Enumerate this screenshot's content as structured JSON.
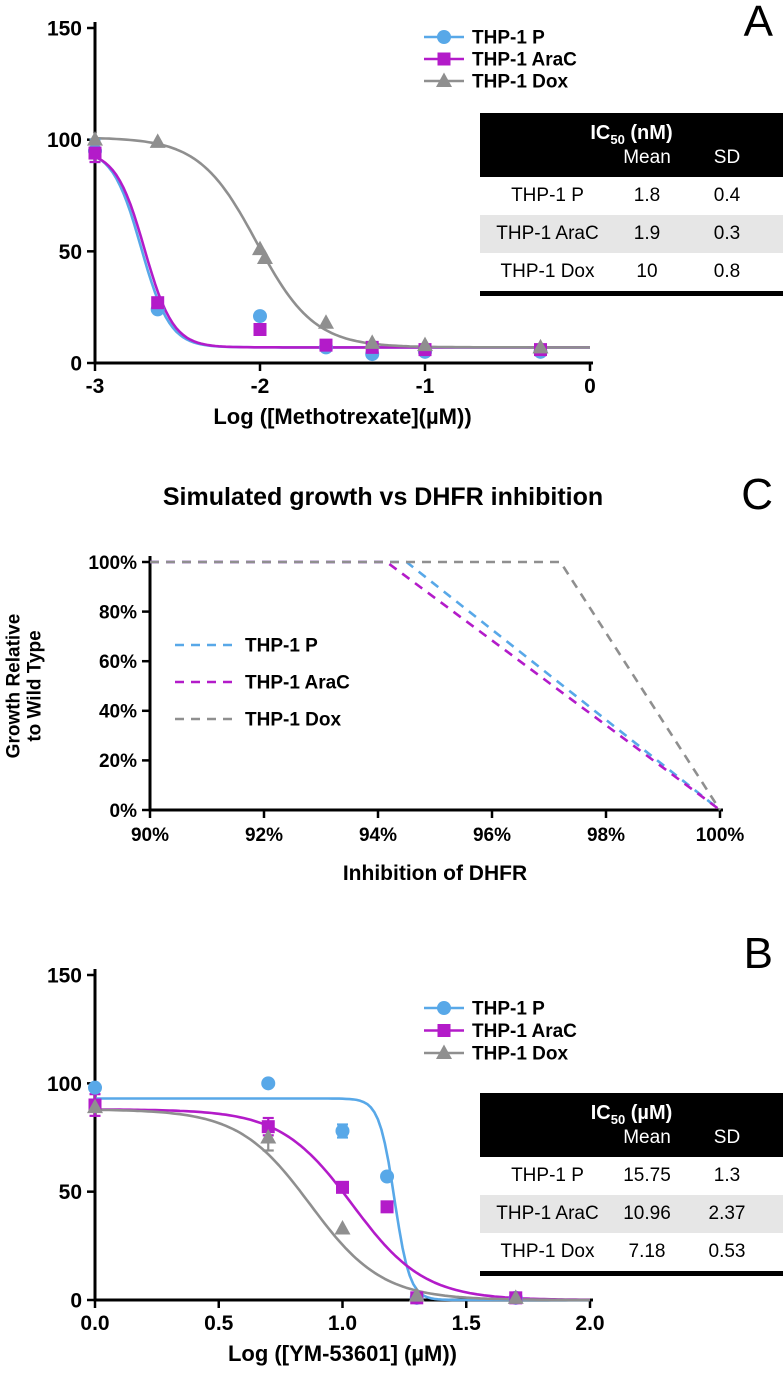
{
  "colors": {
    "thp1_p": "#58a8e8",
    "thp1_arac": "#b31bc9",
    "thp1_dox": "#8f8f8f",
    "axis": "#000000",
    "table_header_bg": "#000000",
    "table_header_text": "#ffffff",
    "table_alt_row_bg": "#e6e6e6"
  },
  "chart_data": [
    {
      "panel_label": "A",
      "type": "scatter",
      "xlabel": "Log ([Methotrexate](µM))",
      "ylabel": "",
      "xlim": [
        -3,
        0
      ],
      "ylim": [
        0,
        150
      ],
      "xticks": [
        -3,
        -2,
        -1,
        0
      ],
      "xtick_labels": [
        "-3",
        "-2",
        "-1",
        "0"
      ],
      "yticks": [
        0,
        50,
        100,
        150
      ],
      "ytick_labels": [
        "0",
        "50",
        "100",
        "150"
      ],
      "legend_position": "top-right-inside",
      "series": [
        {
          "name": "THP-1 P",
          "color_key": "thp1_p",
          "marker": "circle",
          "fit": {
            "top": 96,
            "bottom": 7,
            "logIC50": -2.72,
            "hill": 5
          },
          "points": [
            {
              "x": -3,
              "y": 95,
              "err": 5
            },
            {
              "x": -2.62,
              "y": 24
            },
            {
              "x": -2,
              "y": 21
            },
            {
              "x": -1.6,
              "y": 7
            },
            {
              "x": -1.32,
              "y": 4
            },
            {
              "x": -1,
              "y": 5
            },
            {
              "x": -0.3,
              "y": 5
            }
          ]
        },
        {
          "name": "THP-1 AraC",
          "color_key": "thp1_arac",
          "marker": "square",
          "fit": {
            "top": 95,
            "bottom": 7,
            "logIC50": -2.7,
            "hill": 5
          },
          "points": [
            {
              "x": -3,
              "y": 94,
              "err": 4
            },
            {
              "x": -2.62,
              "y": 27
            },
            {
              "x": -2,
              "y": 15
            },
            {
              "x": -1.6,
              "y": 8
            },
            {
              "x": -1.32,
              "y": 7
            },
            {
              "x": -1,
              "y": 6
            },
            {
              "x": -0.3,
              "y": 6
            }
          ]
        },
        {
          "name": "THP-1 Dox",
          "color_key": "thp1_dox",
          "marker": "triangle",
          "fit": {
            "top": 101,
            "bottom": 7,
            "logIC50": -2.02,
            "hill": 2.5
          },
          "points": [
            {
              "x": -3,
              "y": 100
            },
            {
              "x": -2.62,
              "y": 99
            },
            {
              "x": -2,
              "y": 51
            },
            {
              "x": -1.97,
              "y": 47
            },
            {
              "x": -1.6,
              "y": 18
            },
            {
              "x": -1.32,
              "y": 9
            },
            {
              "x": -1,
              "y": 8
            },
            {
              "x": -0.3,
              "y": 7
            }
          ]
        }
      ],
      "table": {
        "title_prefix": "IC",
        "title_sub": "50",
        "title_suffix": " (nM)",
        "columns": [
          "Mean",
          "SD"
        ],
        "rows": [
          {
            "label": "THP-1 P",
            "mean": "1.8",
            "sd": "0.4"
          },
          {
            "label": "THP-1 AraC",
            "mean": "1.9",
            "sd": "0.3"
          },
          {
            "label": "THP-1 Dox",
            "mean": "10",
            "sd": "0.8"
          }
        ]
      }
    },
    {
      "panel_label": "C",
      "type": "line",
      "title": "Simulated growth vs DHFR inhibition",
      "xlabel": "Inhibition of DHFR",
      "ylabel_lines": [
        "Growth Relative",
        "to Wild Type"
      ],
      "xlim": [
        90,
        100
      ],
      "ylim": [
        0,
        100
      ],
      "xticks": [
        90,
        92,
        94,
        96,
        98,
        100
      ],
      "xtick_labels": [
        "90%",
        "92%",
        "94%",
        "96%",
        "98%",
        "100%"
      ],
      "yticks": [
        0,
        20,
        40,
        60,
        80,
        100
      ],
      "ytick_labels": [
        "0%",
        "20%",
        "40%",
        "60%",
        "80%",
        "100%"
      ],
      "legend_position": "left-inside",
      "series": [
        {
          "name": "THP-1 P",
          "color_key": "thp1_p",
          "style": "dashed",
          "points": [
            {
              "x": 90,
              "y": 100
            },
            {
              "x": 94.5,
              "y": 100
            },
            {
              "x": 100,
              "y": 0
            }
          ]
        },
        {
          "name": "THP-1 AraC",
          "color_key": "thp1_arac",
          "style": "dashed",
          "points": [
            {
              "x": 90,
              "y": 100
            },
            {
              "x": 94.15,
              "y": 100
            },
            {
              "x": 100,
              "y": 0
            }
          ]
        },
        {
          "name": "THP-1 Dox",
          "color_key": "thp1_dox",
          "style": "dashed",
          "points": [
            {
              "x": 90,
              "y": 100
            },
            {
              "x": 97.2,
              "y": 100
            },
            {
              "x": 100,
              "y": 0
            }
          ]
        }
      ]
    },
    {
      "panel_label": "B",
      "type": "scatter",
      "xlabel": "Log ([YM-53601] (µM))",
      "ylabel": "",
      "xlim": [
        0,
        2
      ],
      "ylim": [
        0,
        150
      ],
      "xticks": [
        0,
        0.5,
        1,
        1.5,
        2
      ],
      "xtick_labels": [
        "0.0",
        "0.5",
        "1.0",
        "1.5",
        "2.0"
      ],
      "yticks": [
        0,
        50,
        100,
        150
      ],
      "ytick_labels": [
        "0",
        "50",
        "100",
        "150"
      ],
      "legend_position": "top-right-inside",
      "series": [
        {
          "name": "THP-1 P",
          "color_key": "thp1_p",
          "marker": "circle",
          "fit": {
            "top": 93,
            "bottom": 0,
            "logIC50": 1.21,
            "hill": 14
          },
          "points": [
            {
              "x": 0,
              "y": 98
            },
            {
              "x": 0.7,
              "y": 100
            },
            {
              "x": 1.0,
              "y": 78,
              "err": 3
            },
            {
              "x": 1.18,
              "y": 57
            },
            {
              "x": 1.3,
              "y": 1
            },
            {
              "x": 1.7,
              "y": 1
            }
          ]
        },
        {
          "name": "THP-1 AraC",
          "color_key": "thp1_arac",
          "marker": "square",
          "fit": {
            "top": 88,
            "bottom": 0,
            "logIC50": 1.04,
            "hill": 3
          },
          "points": [
            {
              "x": 0,
              "y": 90,
              "err": 5
            },
            {
              "x": 0.7,
              "y": 80,
              "err": 4
            },
            {
              "x": 1.0,
              "y": 52
            },
            {
              "x": 1.18,
              "y": 43
            },
            {
              "x": 1.3,
              "y": 1
            },
            {
              "x": 1.7,
              "y": 1
            }
          ]
        },
        {
          "name": "THP-1 Dox",
          "color_key": "thp1_dox",
          "marker": "triangle",
          "fit": {
            "top": 88,
            "bottom": 0,
            "logIC50": 0.87,
            "hill": 3
          },
          "points": [
            {
              "x": 0,
              "y": 89
            },
            {
              "x": 0.7,
              "y": 75,
              "err": 6
            },
            {
              "x": 1.0,
              "y": 33
            },
            {
              "x": 1.3,
              "y": 2
            },
            {
              "x": 1.7,
              "y": 1
            }
          ]
        }
      ],
      "table": {
        "title_prefix": "IC",
        "title_sub": "50",
        "title_suffix": " (µM)",
        "columns": [
          "Mean",
          "SD"
        ],
        "rows": [
          {
            "label": "THP-1 P",
            "mean": "15.75",
            "sd": "1.3"
          },
          {
            "label": "THP-1 AraC",
            "mean": "10.96",
            "sd": "2.37"
          },
          {
            "label": "THP-1 Dox",
            "mean": "7.18",
            "sd": "0.53"
          }
        ]
      }
    }
  ]
}
